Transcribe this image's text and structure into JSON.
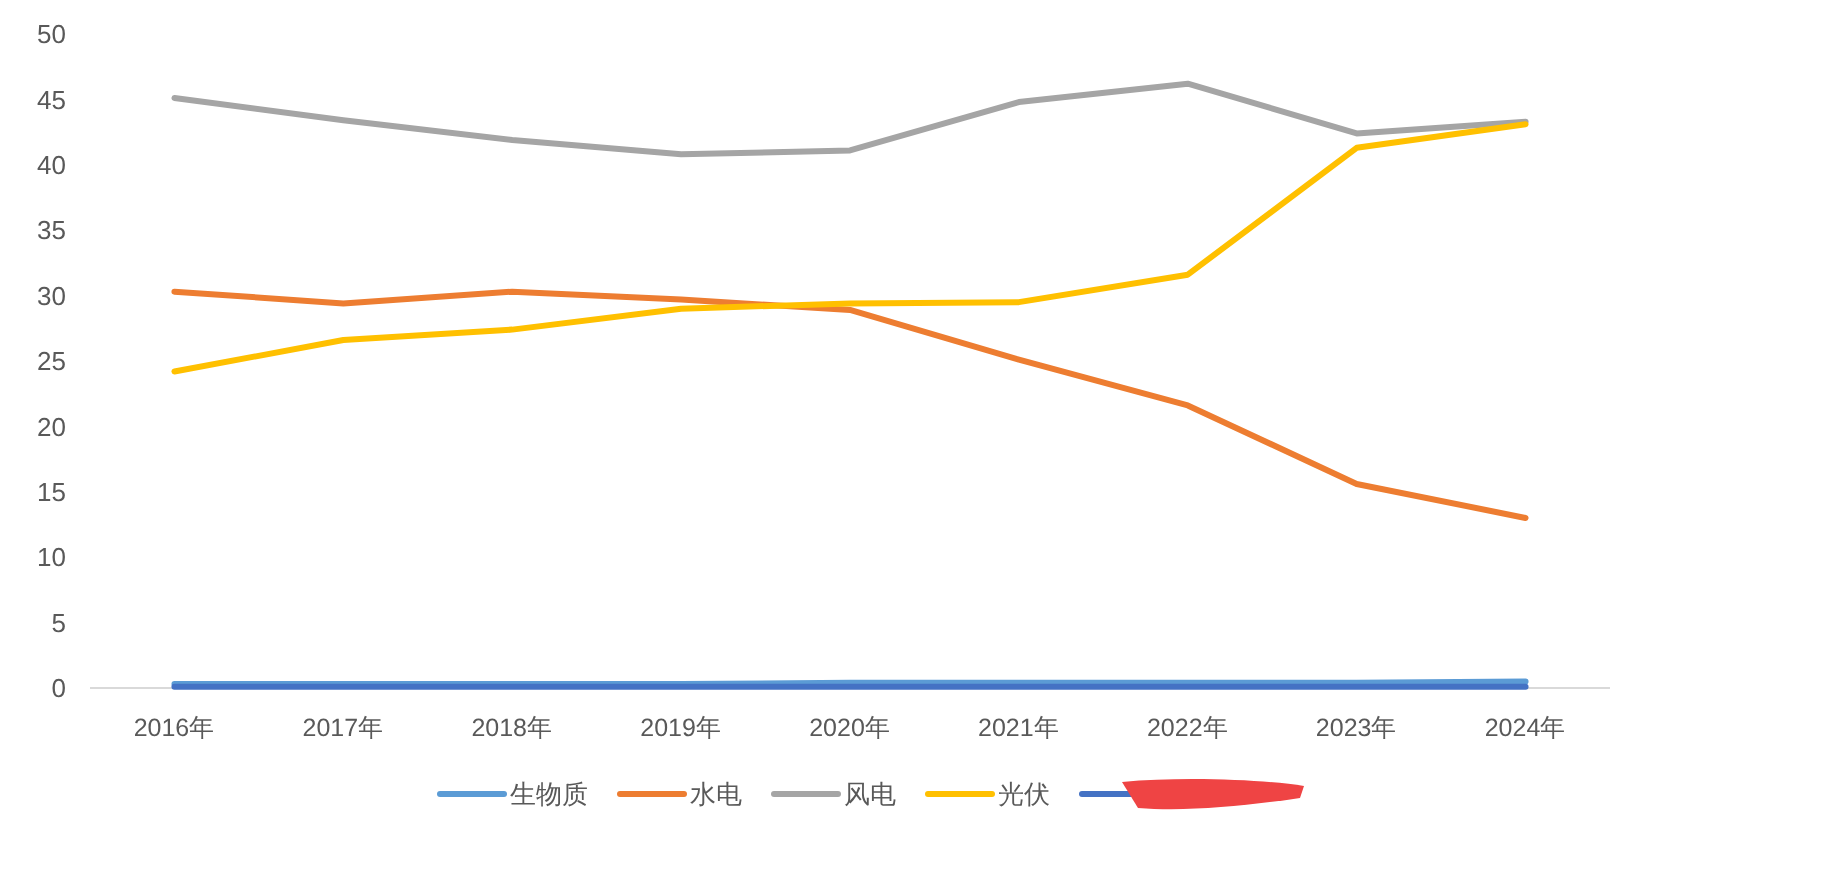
{
  "chart_data": {
    "type": "line",
    "categories": [
      "2016年",
      "2017年",
      "2018年",
      "2019年",
      "2020年",
      "2021年",
      "2022年",
      "2023年",
      "2024年"
    ],
    "series": [
      {
        "name": "生物质",
        "color": "#5b9bd5",
        "values": [
          0.3,
          0.3,
          0.3,
          0.3,
          0.4,
          0.4,
          0.4,
          0.4,
          0.5
        ]
      },
      {
        "name": "水电",
        "color": "#ed7d31",
        "values": [
          30.3,
          29.4,
          30.3,
          29.7,
          28.9,
          25.1,
          21.6,
          15.6,
          13.0
        ]
      },
      {
        "name": "风电",
        "color": "#a5a5a5",
        "values": [
          45.1,
          43.4,
          41.9,
          40.8,
          41.1,
          44.8,
          46.2,
          42.4,
          43.3
        ]
      },
      {
        "name": "光伏",
        "color": "#ffc000",
        "values": [
          24.2,
          26.6,
          27.4,
          29.0,
          29.4,
          29.5,
          31.6,
          41.3,
          43.1
        ]
      },
      {
        "color": "#4472c4",
        "values": [
          0.1,
          0.1,
          0.1,
          0.1,
          0.1,
          0.1,
          0.1,
          0.1,
          0.1
        ]
      }
    ],
    "ylim": [
      0,
      50
    ],
    "yticks": [
      0,
      5,
      10,
      15,
      20,
      25,
      30,
      35,
      40,
      45,
      50
    ],
    "legend": "bottom"
  }
}
